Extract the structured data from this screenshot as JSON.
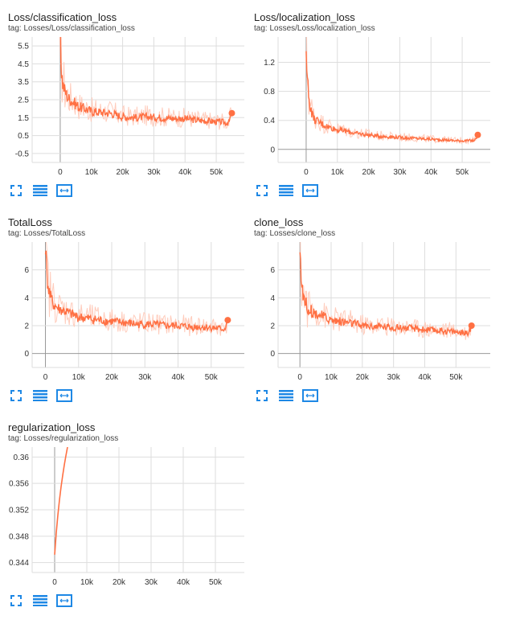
{
  "colors": {
    "line": "#ff7043",
    "raw": "#ffccbc",
    "grid": "#dddddd",
    "axis": "#999999",
    "icon": "#1e88e5"
  },
  "tools": [
    "fit-screen-icon",
    "data-table-icon",
    "fit-domain-icon"
  ],
  "charts": [
    {
      "title": "Loss/classification_loss",
      "tag": "tag: Losses/Loss/classification_loss",
      "chart_data": {
        "type": "line",
        "ylim": [
          -1.0,
          6.0
        ],
        "yticks": [
          -0.5,
          0.5,
          1.5,
          2.5,
          3.5,
          4.5,
          5.5
        ],
        "ytick_labels": [
          "-0.5",
          "0.5",
          "1.5",
          "2.5",
          "3.5",
          "4.5",
          "5.5"
        ],
        "xlim": [
          -9000,
          59000
        ],
        "xticks": [
          0,
          10000,
          20000,
          30000,
          40000,
          50000
        ],
        "xtick_labels": [
          "0",
          "10k",
          "20k",
          "30k",
          "40k",
          "50k"
        ],
        "series": [
          {
            "x": [
              0,
              300,
              800,
              1500,
              2500,
              4000,
              6000,
              8000,
              10000,
              13000,
              16000,
              20000,
              24000,
              28000,
              32000,
              36000,
              40000,
              44000,
              48000,
              52000,
              54000,
              55000
            ],
            "y": [
              6.0,
              4.3,
              3.4,
              3.0,
              2.6,
              2.4,
              2.1,
              2.0,
              1.85,
              1.8,
              1.75,
              1.55,
              1.5,
              1.55,
              1.5,
              1.45,
              1.45,
              1.35,
              1.3,
              1.25,
              1.2,
              1.75
            ]
          }
        ]
      }
    },
    {
      "title": "Loss/localization_loss",
      "tag": "tag: Losses/Loss/localization_loss",
      "chart_data": {
        "type": "line",
        "ylim": [
          -0.18,
          1.55
        ],
        "yticks": [
          0,
          0.4,
          0.8,
          1.2
        ],
        "ytick_labels": [
          "0",
          "0.4",
          "0.8",
          "1.2"
        ],
        "xlim": [
          -9000,
          59000
        ],
        "xticks": [
          0,
          10000,
          20000,
          30000,
          40000,
          50000
        ],
        "xtick_labels": [
          "0",
          "10k",
          "20k",
          "30k",
          "40k",
          "50k"
        ],
        "series": [
          {
            "x": [
              0,
              300,
              800,
              1500,
              2500,
              4000,
              6000,
              8000,
              10000,
              13000,
              16000,
              20000,
              24000,
              28000,
              32000,
              36000,
              40000,
              44000,
              48000,
              52000,
              54000,
              55000
            ],
            "y": [
              1.55,
              1.05,
              0.75,
              0.55,
              0.42,
              0.38,
              0.33,
              0.3,
              0.27,
              0.25,
              0.22,
              0.2,
              0.18,
              0.17,
              0.16,
              0.15,
              0.14,
              0.13,
              0.12,
              0.12,
              0.12,
              0.2
            ]
          }
        ]
      }
    },
    {
      "title": "TotalLoss",
      "tag": "tag: Losses/TotalLoss",
      "chart_data": {
        "type": "line",
        "ylim": [
          -1.0,
          8.0
        ],
        "yticks": [
          0,
          2,
          4,
          6
        ],
        "ytick_labels": [
          "0",
          "2",
          "4",
          "6"
        ],
        "xlim": [
          -4000,
          60000
        ],
        "xticks": [
          0,
          10000,
          20000,
          30000,
          40000,
          50000
        ],
        "xtick_labels": [
          "0",
          "10k",
          "20k",
          "30k",
          "40k",
          "50k"
        ],
        "series": [
          {
            "x": [
              0,
              300,
              800,
              1500,
              2500,
              4000,
              6000,
              8000,
              10000,
              13000,
              16000,
              20000,
              24000,
              28000,
              32000,
              36000,
              40000,
              44000,
              48000,
              52000,
              54000,
              55000
            ],
            "y": [
              8.0,
              6.0,
              4.8,
              4.0,
              3.5,
              3.2,
              3.0,
              2.8,
              2.6,
              2.5,
              2.4,
              2.3,
              2.2,
              2.1,
              2.1,
              2.0,
              2.0,
              1.9,
              1.9,
              1.8,
              1.75,
              2.4
            ]
          }
        ]
      }
    },
    {
      "title": "clone_loss",
      "tag": "tag: Losses/clone_loss",
      "chart_data": {
        "type": "line",
        "ylim": [
          -1.0,
          8.0
        ],
        "yticks": [
          0,
          2,
          4,
          6
        ],
        "ytick_labels": [
          "0",
          "2",
          "4",
          "6"
        ],
        "xlim": [
          -7000,
          61000
        ],
        "xticks": [
          0,
          10000,
          20000,
          30000,
          40000,
          50000
        ],
        "xtick_labels": [
          "0",
          "10k",
          "20k",
          "30k",
          "40k",
          "50k"
        ],
        "series": [
          {
            "x": [
              0,
              300,
              800,
              1500,
              2500,
              4000,
              6000,
              8000,
              10000,
              13000,
              16000,
              20000,
              24000,
              28000,
              32000,
              36000,
              40000,
              44000,
              48000,
              52000,
              54000,
              55000
            ],
            "y": [
              8.0,
              5.8,
              4.6,
              3.8,
              3.3,
              3.0,
              2.8,
              2.6,
              2.4,
              2.3,
              2.2,
              2.0,
              1.95,
              1.9,
              1.85,
              1.8,
              1.7,
              1.65,
              1.6,
              1.5,
              1.45,
              2.0
            ]
          }
        ]
      }
    },
    {
      "title": "regularization_loss",
      "tag": "tag: Losses/regularization_loss",
      "chart_data": {
        "type": "line",
        "ylim": [
          0.3425,
          0.3615
        ],
        "yticks": [
          0.344,
          0.348,
          0.352,
          0.356,
          0.36
        ],
        "ytick_labels": [
          "0.344",
          "0.348",
          "0.352",
          "0.356",
          "0.36"
        ],
        "xlim": [
          -7000,
          59000
        ],
        "xticks": [
          0,
          10000,
          20000,
          30000,
          40000,
          50000
        ],
        "xtick_labels": [
          "0",
          "10k",
          "20k",
          "30k",
          "40k",
          "50k"
        ],
        "series": [
          {
            "x": [
              0,
              500,
              1000,
              1500,
              2000,
              2500,
              3000,
              3500,
              4000
            ],
            "y": [
              0.3452,
              0.3485,
              0.3512,
              0.3535,
              0.3555,
              0.3572,
              0.3588,
              0.3602,
              0.3615
            ]
          }
        ]
      }
    }
  ]
}
